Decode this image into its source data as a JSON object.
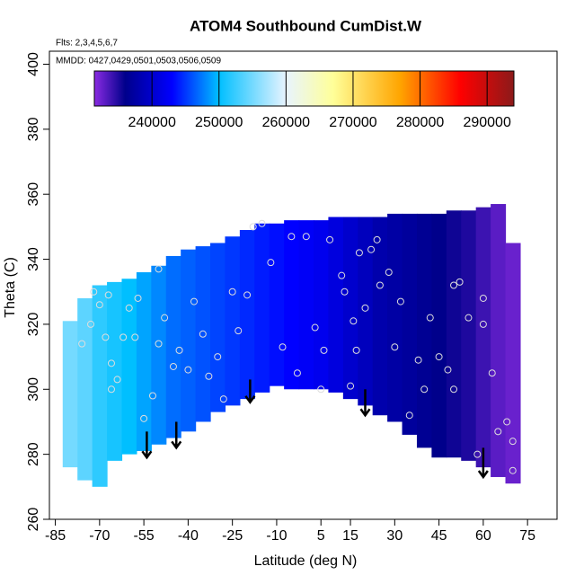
{
  "chart_data": {
    "type": "field",
    "title": "ATOM4 Southbound CumDist.W",
    "subtitle": "Flts: 2,3,4,5,6,7",
    "annotation": "MMDD: 0427,0429,0501,0503,0506,0509",
    "x_label": "Latitude (deg N)",
    "y_label": "Theta (C)",
    "xlim": [
      -87,
      85
    ],
    "ylim": [
      260,
      404
    ],
    "xticks": [
      -85,
      -70,
      -55,
      -40,
      -25,
      -10,
      5,
      15,
      30,
      45,
      60,
      75
    ],
    "yticks": [
      260,
      280,
      300,
      320,
      340,
      360,
      380,
      400
    ],
    "column_width": 5,
    "x": [
      -80,
      -75,
      -70,
      -65,
      -60,
      -55,
      -50,
      -45,
      -40,
      -35,
      -30,
      -25,
      -20,
      -15,
      -10,
      -5,
      0,
      5,
      10,
      15,
      20,
      25,
      30,
      35,
      40,
      45,
      50,
      55,
      60,
      65,
      70
    ],
    "ymin": [
      276,
      272,
      270,
      278,
      280,
      281,
      283,
      285,
      287,
      290,
      293,
      295,
      297,
      299,
      301,
      300,
      300,
      300,
      299,
      297,
      295,
      292,
      290,
      286,
      282,
      279,
      279,
      278,
      276,
      273,
      271
    ],
    "ymax": [
      321,
      328,
      332,
      333,
      334,
      336,
      338,
      341,
      343,
      344,
      345,
      347,
      349,
      351,
      351,
      352,
      352,
      352,
      353,
      353,
      353,
      353,
      354,
      354,
      354,
      354,
      355,
      355,
      356,
      357,
      345
    ],
    "values": [
      255000,
      254000,
      252000,
      251000,
      250000,
      249000,
      248000,
      247000,
      246500,
      246000,
      245500,
      245000,
      244500,
      244000,
      243500,
      243000,
      242500,
      242000,
      241000,
      240000,
      239000,
      238000,
      237500,
      237000,
      236500,
      236000,
      235500,
      235000,
      234000,
      233000,
      232500
    ],
    "clim": [
      231400,
      294000
    ],
    "colorbar_ticks": [
      240000,
      250000,
      260000,
      270000,
      280000,
      290000
    ],
    "colorscale": [
      [
        231400,
        "#8a2be2"
      ],
      [
        236000,
        "#00008b"
      ],
      [
        243000,
        "#0000ff"
      ],
      [
        250000,
        "#00bfff"
      ],
      [
        260000,
        "#e8f4ff"
      ],
      [
        267000,
        "#ffff99"
      ],
      [
        277000,
        "#ffa500"
      ],
      [
        286000,
        "#ff0000"
      ],
      [
        294000,
        "#8b1a1a"
      ]
    ],
    "points": {
      "color": "#dddddd",
      "x": [
        -76,
        -73,
        -72,
        -70,
        -68,
        -67,
        -66,
        -66,
        -64,
        -62,
        -60,
        -58,
        -57,
        -55,
        -52,
        -50,
        -50,
        -48,
        -45,
        -43,
        -40,
        -38,
        -35,
        -33,
        -30,
        -28,
        -25,
        -23,
        -20,
        -18,
        -15,
        -12,
        -8,
        -5,
        -3,
        0,
        3,
        5,
        6,
        8,
        12,
        13,
        15,
        16,
        17,
        18,
        20,
        22,
        24,
        25,
        28,
        30,
        32,
        35,
        38,
        40,
        42,
        45,
        48,
        50,
        50,
        52,
        55,
        58,
        60,
        60,
        63,
        65,
        68,
        70,
        70
      ],
      "y": [
        314,
        320,
        330,
        326,
        316,
        329,
        308,
        300,
        303,
        316,
        325,
        316,
        328,
        291,
        298,
        314,
        337,
        322,
        307,
        312,
        306,
        327,
        317,
        304,
        310,
        297,
        330,
        318,
        329,
        350,
        351,
        339,
        313,
        347,
        305,
        347,
        319,
        300,
        312,
        346,
        335,
        330,
        301,
        321,
        312,
        342,
        325,
        343,
        346,
        332,
        336,
        313,
        327,
        292,
        309,
        300,
        322,
        310,
        306,
        300,
        332,
        333,
        322,
        280,
        328,
        320,
        305,
        287,
        290,
        275,
        284
      ]
    },
    "arrows": {
      "x": [
        -54,
        -44,
        -19,
        20,
        60
      ],
      "y_start": [
        287,
        290,
        303,
        300,
        282
      ],
      "y_end": [
        279,
        282,
        296,
        292,
        273
      ]
    }
  }
}
